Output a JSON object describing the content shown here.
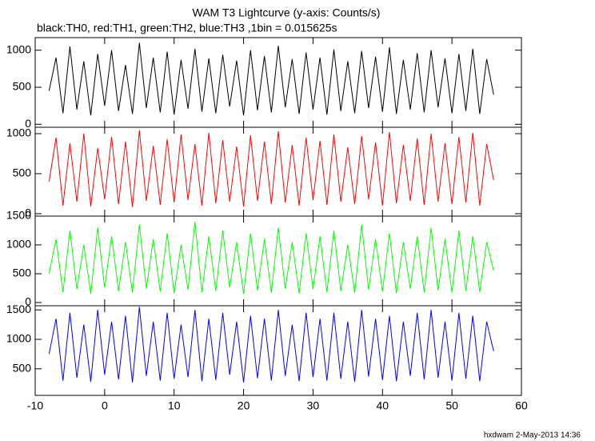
{
  "footer": "hxdwam 2-May-2013 14:36",
  "chart_data": [
    {
      "type": "line",
      "title": "WAM T3 Lightcurve (y-axis: Counts/s)",
      "subtitle": "black:TH0, red:TH1, green:TH2, blue:TH3 ,1bin = 0.015625s",
      "color": "#000000",
      "xlim": [
        -10,
        60
      ],
      "xticks": [
        -10,
        0,
        10,
        20,
        30,
        40,
        50,
        60
      ],
      "ylim": [
        -40,
        1170
      ],
      "yticks": [
        0,
        500,
        1000
      ],
      "x": [
        -8,
        -7,
        -6,
        -5,
        -4,
        -3,
        -2,
        -1,
        0,
        1,
        2,
        3,
        4,
        5,
        6,
        7,
        8,
        9,
        10,
        11,
        12,
        13,
        14,
        15,
        16,
        17,
        18,
        19,
        20,
        21,
        22,
        23,
        24,
        25,
        26,
        27,
        28,
        29,
        30,
        31,
        32,
        33,
        34,
        35,
        36,
        37,
        38,
        39,
        40,
        41,
        42,
        43,
        44,
        45,
        46,
        47,
        48,
        49,
        50,
        51,
        52,
        53,
        54,
        55,
        56
      ],
      "values": [
        450,
        900,
        150,
        1050,
        200,
        850,
        120,
        950,
        250,
        1000,
        180,
        800,
        140,
        1100,
        220,
        900,
        160,
        980,
        130,
        870,
        210,
        1020,
        170,
        890,
        150,
        940,
        240,
        860,
        120,
        1000,
        190,
        920,
        160,
        1060,
        230,
        880,
        140,
        970,
        200,
        900,
        130,
        1010,
        180,
        850,
        150,
        990,
        220,
        910,
        170,
        1040,
        140,
        870,
        200,
        960,
        160,
        1000,
        230,
        890,
        150,
        950,
        180,
        1020,
        140,
        880,
        400
      ]
    },
    {
      "type": "line",
      "color": "#ff0000",
      "xlim": [
        -10,
        60
      ],
      "xticks": [
        -10,
        0,
        10,
        20,
        30,
        40,
        50,
        60
      ],
      "ylim": [
        -30,
        1080
      ],
      "yticks": [
        0,
        500,
        1000
      ],
      "x": [
        -8,
        -7,
        -6,
        -5,
        -4,
        -3,
        -2,
        -1,
        0,
        1,
        2,
        3,
        4,
        5,
        6,
        7,
        8,
        9,
        10,
        11,
        12,
        13,
        14,
        15,
        16,
        17,
        18,
        19,
        20,
        21,
        22,
        23,
        24,
        25,
        26,
        27,
        28,
        29,
        30,
        31,
        32,
        33,
        34,
        35,
        36,
        37,
        38,
        39,
        40,
        41,
        42,
        43,
        44,
        45,
        46,
        47,
        48,
        49,
        50,
        51,
        52,
        53,
        54,
        55,
        56
      ],
      "values": [
        400,
        950,
        100,
        880,
        150,
        1000,
        90,
        820,
        180,
        960,
        120,
        900,
        80,
        1040,
        160,
        850,
        110,
        930,
        140,
        990,
        170,
        870,
        100,
        1010,
        130,
        920,
        150,
        840,
        90,
        980,
        160,
        900,
        120,
        1030,
        140,
        860,
        100,
        950,
        170,
        910,
        110,
        990,
        150,
        830,
        120,
        970,
        180,
        890,
        100,
        1020,
        130,
        860,
        160,
        940,
        110,
        1000,
        150,
        880,
        120,
        960,
        140,
        1010,
        100,
        870,
        420
      ]
    },
    {
      "type": "line",
      "color": "#00ff00",
      "xlim": [
        -10,
        60
      ],
      "xticks": [
        -10,
        0,
        10,
        20,
        30,
        40,
        50,
        60
      ],
      "ylim": [
        -55,
        1500
      ],
      "yticks": [
        0,
        500,
        1000,
        1500
      ],
      "x": [
        -8,
        -7,
        -6,
        -5,
        -4,
        -3,
        -2,
        -1,
        0,
        1,
        2,
        3,
        4,
        5,
        6,
        7,
        8,
        9,
        10,
        11,
        12,
        13,
        14,
        15,
        16,
        17,
        18,
        19,
        20,
        21,
        22,
        23,
        24,
        25,
        26,
        27,
        28,
        29,
        30,
        31,
        32,
        33,
        34,
        35,
        36,
        37,
        38,
        39,
        40,
        41,
        42,
        43,
        44,
        45,
        46,
        47,
        48,
        49,
        50,
        51,
        52,
        53,
        54,
        55,
        56
      ],
      "values": [
        500,
        1100,
        180,
        1250,
        230,
        1000,
        150,
        1300,
        260,
        1150,
        200,
        1050,
        170,
        1350,
        240,
        1100,
        190,
        1200,
        160,
        1000,
        220,
        1400,
        180,
        1150,
        200,
        1250,
        260,
        1050,
        150,
        1200,
        210,
        1100,
        170,
        1300,
        240,
        1050,
        160,
        1200,
        230,
        1150,
        180,
        1250,
        200,
        1000,
        170,
        1350,
        220,
        1100,
        190,
        1200,
        160,
        1050,
        240,
        1150,
        180,
        1300,
        210,
        1100,
        170,
        1250,
        200,
        1150,
        180,
        1050,
        550
      ]
    },
    {
      "type": "line",
      "color": "#0000ff",
      "xlim": [
        -10,
        60
      ],
      "xticks": [
        -10,
        0,
        10,
        20,
        30,
        40,
        50,
        60
      ],
      "ylim": [
        50,
        1570
      ],
      "yticks": [
        500,
        1000,
        1500
      ],
      "x": [
        -8,
        -7,
        -6,
        -5,
        -4,
        -3,
        -2,
        -1,
        0,
        1,
        2,
        3,
        4,
        5,
        6,
        7,
        8,
        9,
        10,
        11,
        12,
        13,
        14,
        15,
        16,
        17,
        18,
        19,
        20,
        21,
        22,
        23,
        24,
        25,
        26,
        27,
        28,
        29,
        30,
        31,
        32,
        33,
        34,
        35,
        36,
        37,
        38,
        39,
        40,
        41,
        42,
        43,
        44,
        45,
        46,
        47,
        48,
        49,
        50,
        51,
        52,
        53,
        54,
        55,
        56
      ],
      "values": [
        750,
        1350,
        300,
        1450,
        350,
        1250,
        280,
        1500,
        400,
        1300,
        320,
        1400,
        270,
        1550,
        380,
        1300,
        300,
        1450,
        330,
        1250,
        360,
        1500,
        290,
        1350,
        310,
        1450,
        400,
        1300,
        270,
        1400,
        340,
        1350,
        300,
        1500,
        380,
        1250,
        290,
        1450,
        360,
        1350,
        300,
        1450,
        330,
        1300,
        280,
        1500,
        370,
        1350,
        310,
        1400,
        290,
        1300,
        380,
        1450,
        320,
        1500,
        350,
        1300,
        300,
        1450,
        330,
        1400,
        290,
        1300,
        800
      ]
    }
  ]
}
